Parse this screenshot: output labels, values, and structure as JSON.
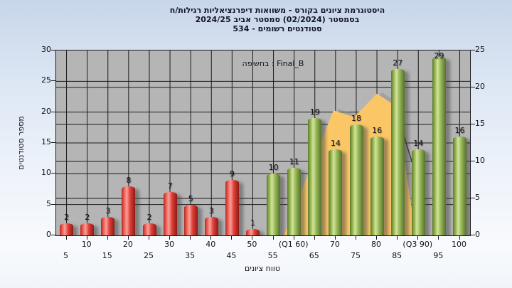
{
  "title": {
    "line1": "היסטוגרמת ציונים בקורס - משוואות דיפרנציאליות רגילות/ח",
    "line2": "בסמסטר  (02/2024)  סמסטר אביב 2024/25",
    "line3": "סטודנטים רשומים - 534"
  },
  "axes": {
    "left": {
      "ticks": [
        0,
        5,
        10,
        15,
        20,
        25,
        30
      ],
      "max": 30,
      "grid_values": [
        5,
        10,
        15,
        20,
        25
      ]
    },
    "right": {
      "ticks": [
        0,
        5,
        10,
        15,
        20,
        25
      ],
      "max": 25,
      "grid_values": [
        5,
        10,
        15,
        20
      ]
    },
    "x": {
      "row1": [
        "10",
        "20",
        "30",
        "40",
        "50",
        "(Q1 60)",
        "70",
        "80",
        "(Q3 90)",
        "100"
      ],
      "row2": [
        "5",
        "15",
        "25",
        "35",
        "45",
        "55",
        "65",
        "75",
        "85",
        "95"
      ]
    }
  },
  "chart_data": {
    "type": "bar",
    "title": "היסטוגרמת ציונים בקורס - משוואות דיפרנציאליות רגילות/ח",
    "subtitle": "בסמסטר  (02/2024)  סמסטר אביב 2024/25",
    "registered_students_note": "סטודנטים רשומים - 534",
    "legend": "בחשיפה : Final_B",
    "xlabel": "טווח ציונים",
    "ylabel": "מספר סטודנטים",
    "categories": [
      5,
      10,
      15,
      20,
      25,
      30,
      35,
      40,
      45,
      50,
      55,
      60,
      65,
      70,
      75,
      80,
      85,
      90,
      95,
      100
    ],
    "series": [
      {
        "name": "Final_B",
        "values": [
          2,
          2,
          3,
          8,
          2,
          7,
          5,
          3,
          9,
          1,
          10,
          11,
          19,
          14,
          18,
          16,
          27,
          14,
          29,
          16
        ]
      }
    ],
    "quartile_annotations": [
      "(Q1 60)",
      "(Q3 90)"
    ],
    "fail_threshold": 55,
    "ylim_left": [
      0,
      30
    ],
    "ylim_right": [
      0,
      25
    ],
    "grid": true,
    "colors": {
      "fail_bar": "#e04038",
      "pass_bar": "#97b858",
      "area": "#fbc766",
      "area_shadow": "#8f8f8f",
      "curve": "#35353f",
      "plot_bg": "#b5b5b5",
      "grid_line": "#1a1a1a"
    },
    "area_overlay_points": [
      [
        57.5,
        0
      ],
      [
        69.5,
        20.3
      ],
      [
        74.5,
        19.2
      ],
      [
        80,
        23
      ],
      [
        84.8,
        20.9
      ],
      [
        89.3,
        0
      ]
    ],
    "curve_overlay_points": [
      [
        84,
        22.2
      ],
      [
        88.2,
        12.5
      ],
      [
        91.7,
        5.8
      ]
    ]
  }
}
